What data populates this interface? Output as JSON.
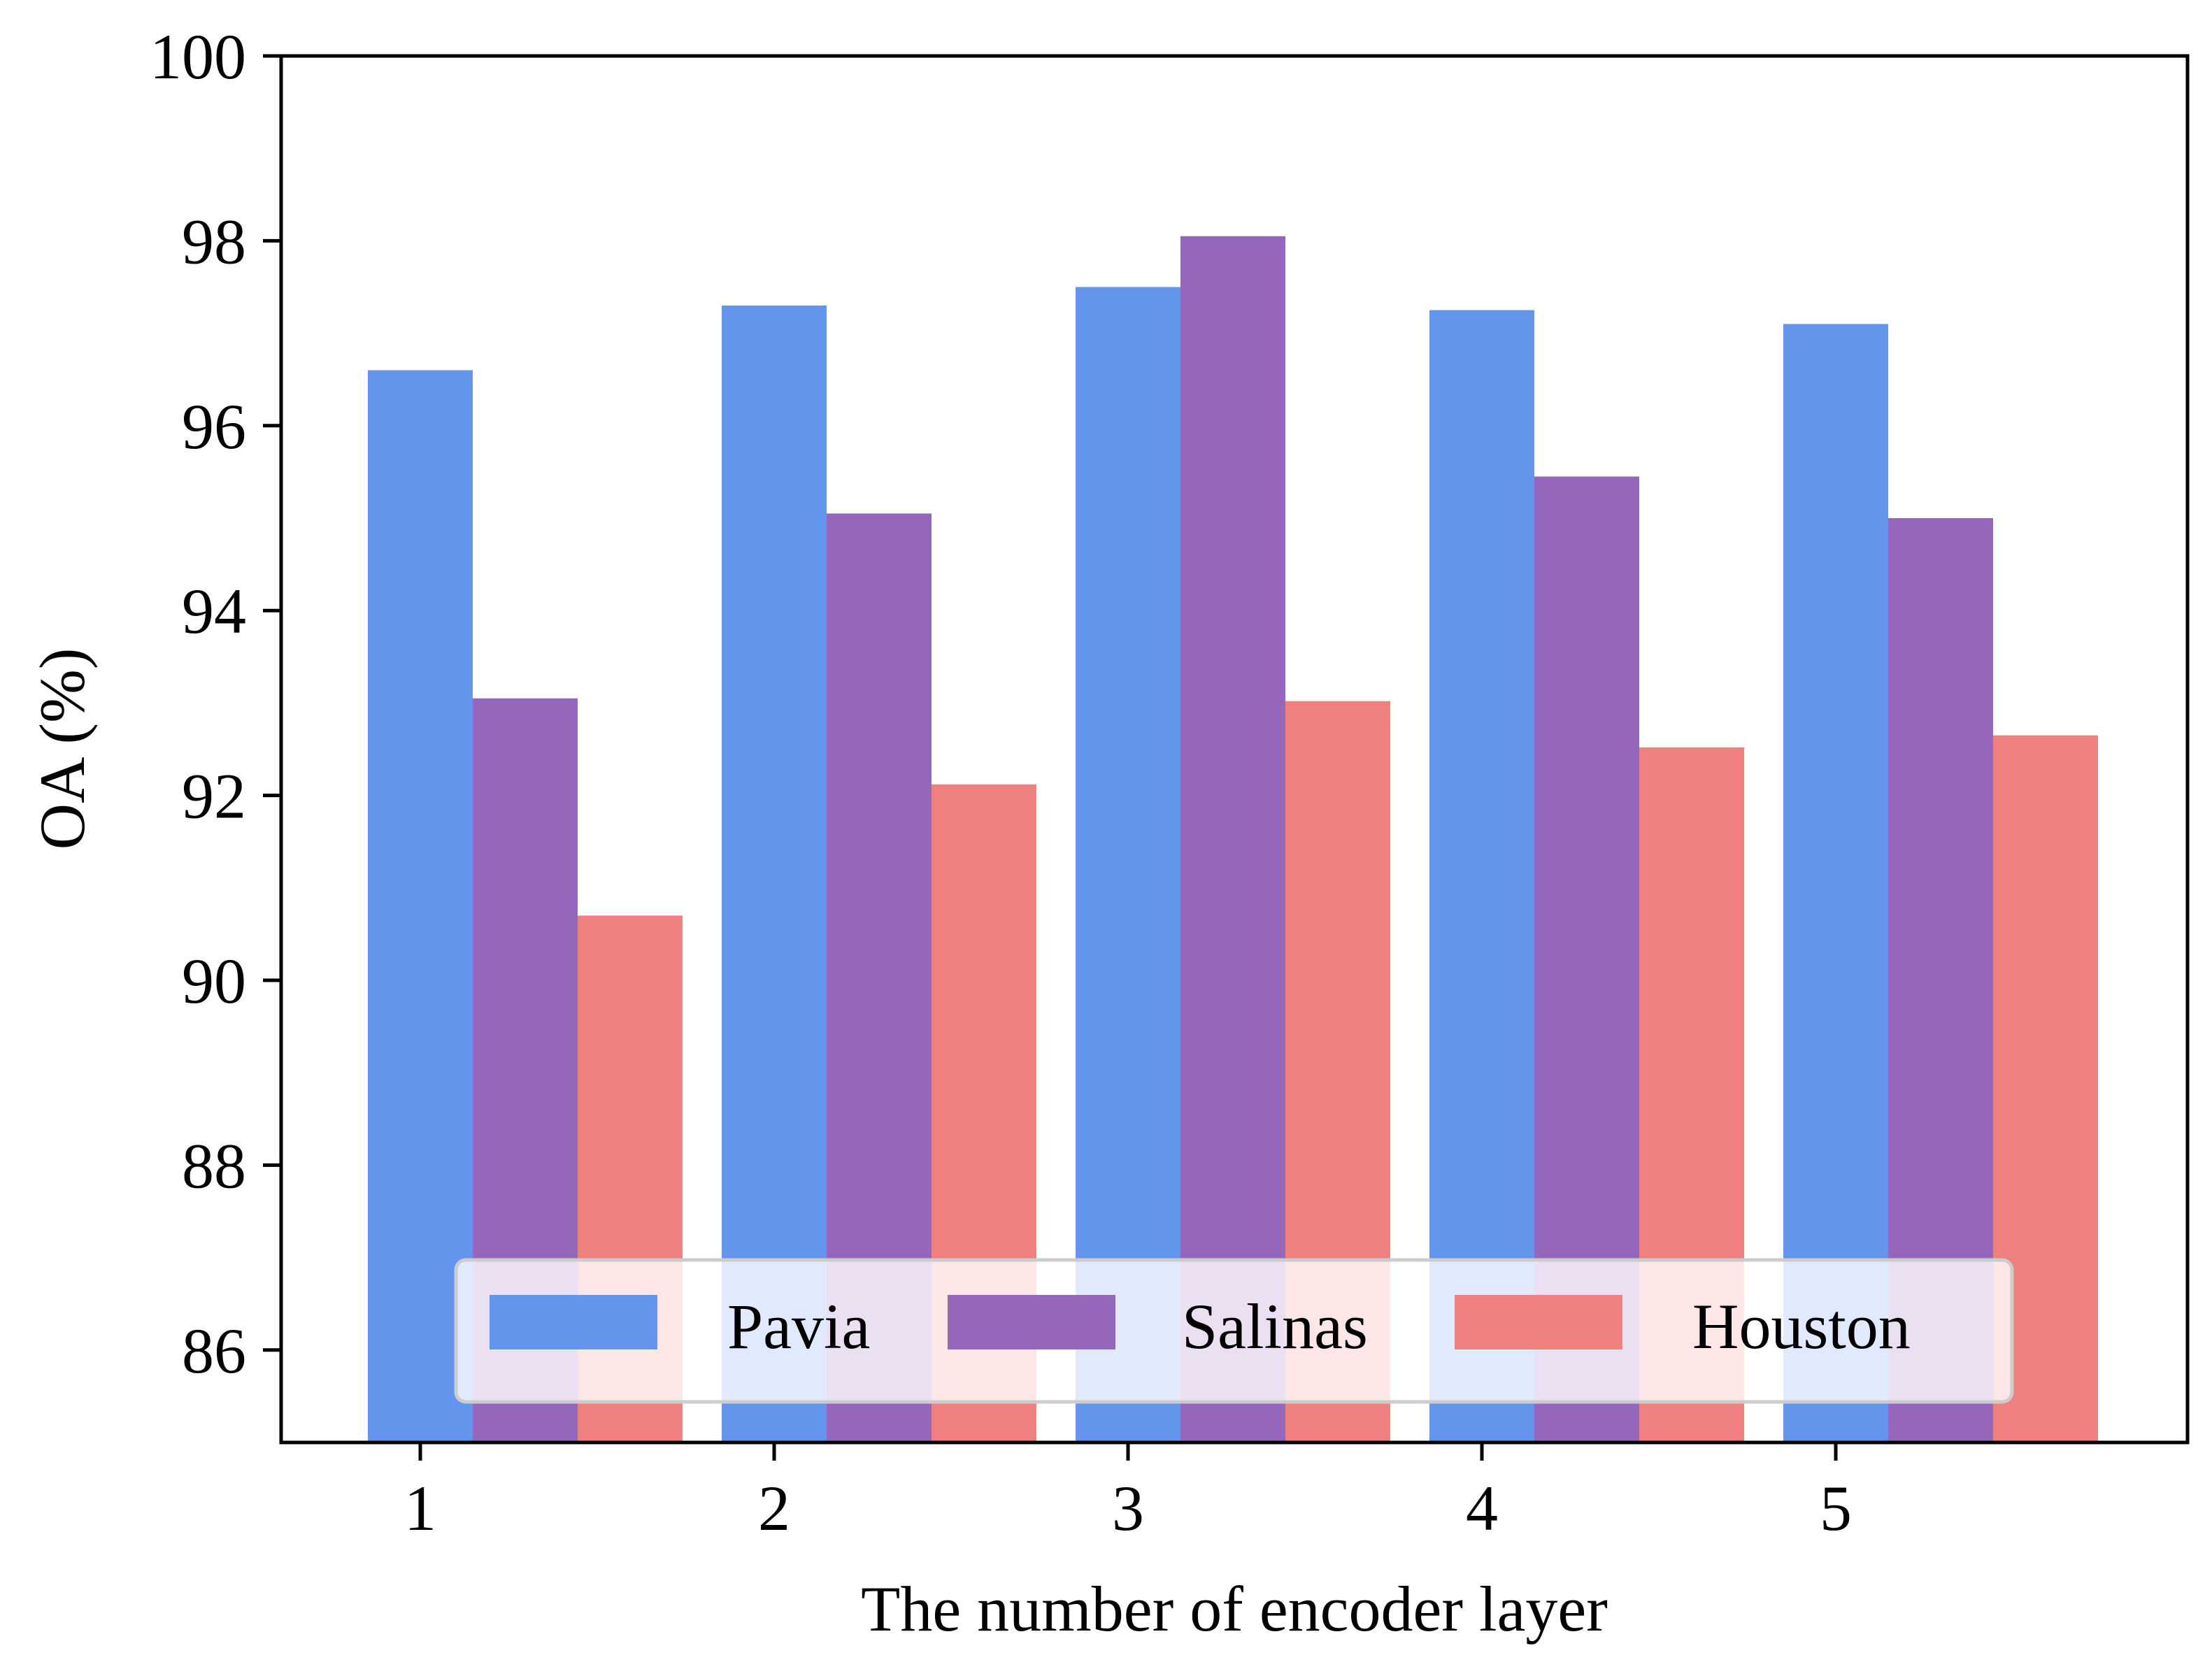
{
  "chart_data": {
    "type": "bar",
    "title": "",
    "xlabel": "The number of encoder layer",
    "ylabel": "OA (%)",
    "categories": [
      "1",
      "2",
      "3",
      "4",
      "5"
    ],
    "ylim": [
      85,
      100
    ],
    "yticks": [
      86,
      88,
      90,
      92,
      94,
      96,
      98,
      100
    ],
    "ytick_labels": [
      "86",
      "88",
      "90",
      "92",
      "94",
      "96",
      "98",
      "100"
    ],
    "grid": false,
    "legend_position": "lower-center",
    "series": [
      {
        "name": "Pavia",
        "color": "#6495ED",
        "values": [
          96.6,
          97.3,
          97.5,
          97.25,
          97.1
        ]
      },
      {
        "name": "Salinas",
        "color": "#9467BD",
        "values": [
          93.05,
          95.05,
          98.05,
          95.45,
          95.0
        ]
      },
      {
        "name": "Houston",
        "color": "#F08080",
        "values": [
          90.7,
          92.12,
          93.02,
          92.52,
          92.65
        ]
      }
    ]
  }
}
